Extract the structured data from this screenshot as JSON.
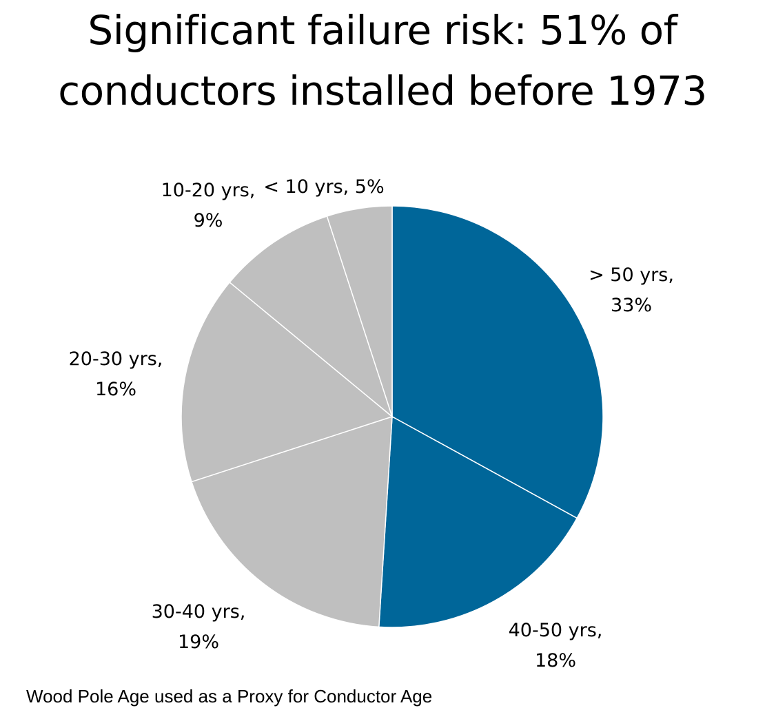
{
  "title": {
    "line1": "Significant failure risk: 51% of",
    "line2": "conductors installed before 1973"
  },
  "footnote": "Wood Pole Age used as a Proxy for Conductor Age",
  "colors": {
    "highlight": "#006699",
    "muted": "#BFBFBF",
    "separator": "#FFFFFF"
  },
  "chart_data": {
    "type": "pie",
    "categories": [
      "> 50 yrs",
      "40-50 yrs",
      "30-40 yrs",
      "20-30 yrs",
      "10-20 yrs",
      "< 10 yrs"
    ],
    "values": [
      33,
      18,
      19,
      16,
      9,
      5
    ],
    "data_labels": [
      [
        "> 50 yrs,",
        "33%"
      ],
      [
        "40-50 yrs,",
        "18%"
      ],
      [
        "30-40 yrs,",
        "19%"
      ],
      [
        "20-30 yrs,",
        "16%"
      ],
      [
        "10-20 yrs,",
        "9%"
      ],
      [
        "< 10 yrs, 5%"
      ]
    ],
    "highlighted": [
      "> 50 yrs",
      "40-50 yrs"
    ],
    "unit": "%"
  }
}
